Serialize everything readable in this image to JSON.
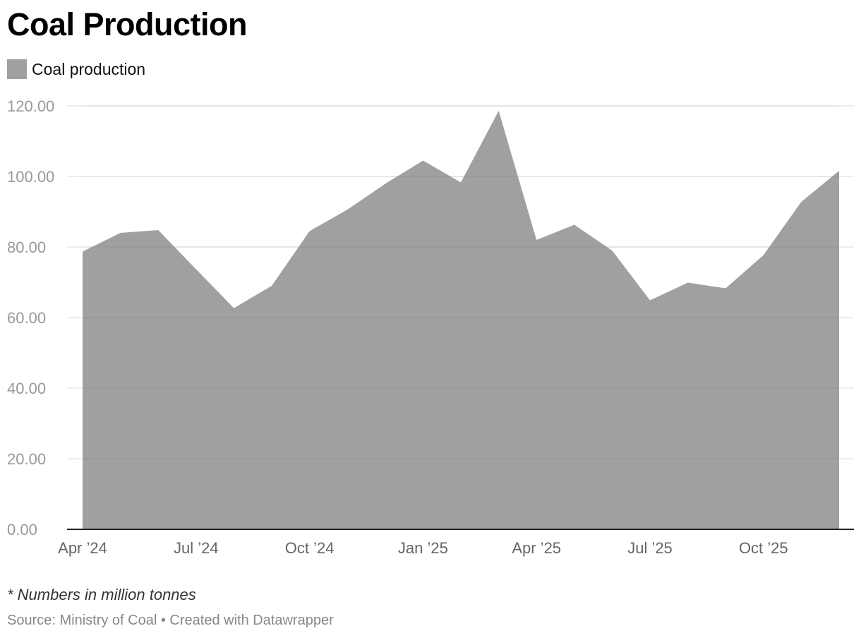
{
  "title": "Coal Production",
  "note": "* Numbers in million tonnes",
  "source": "Source: Ministry of Coal • Created with Datawrapper",
  "colors": {
    "area": "#a0a0a0",
    "grid": "#e2e2e2",
    "baseline": "#222222",
    "tick_y": "#999999",
    "tick_x": "#666666"
  },
  "chart_data": {
    "type": "area",
    "title": "Coal Production",
    "legend": {
      "entries": [
        "Coal production"
      ],
      "placement": "top-left"
    },
    "x": [
      "2024-04",
      "2024-05",
      "2024-06",
      "2024-07",
      "2024-08",
      "2024-09",
      "2024-10",
      "2024-11",
      "2024-12",
      "2025-01",
      "2025-02",
      "2025-03",
      "2025-04",
      "2025-05",
      "2025-06",
      "2025-07",
      "2025-08",
      "2025-09",
      "2025-10",
      "2025-11",
      "2025-12"
    ],
    "series": [
      {
        "name": "Coal production",
        "values": [
          78.7,
          84.0,
          84.8,
          73.7,
          62.7,
          69.0,
          84.5,
          90.6,
          97.9,
          104.5,
          98.3,
          118.6,
          82.0,
          86.3,
          79.0,
          64.9,
          69.9,
          68.3,
          77.7,
          92.8,
          101.6
        ]
      }
    ],
    "ylim": [
      0,
      120
    ],
    "yticks": [
      0,
      20,
      40,
      60,
      80,
      100,
      120
    ],
    "ytick_labels": [
      "0.00",
      "20.00",
      "40.00",
      "60.00",
      "80.00",
      "100.00",
      "120.00"
    ],
    "xticks": [
      "2024-04",
      "2024-07",
      "2024-10",
      "2025-01",
      "2025-04",
      "2025-07",
      "2025-10"
    ],
    "xtick_labels": [
      "Apr ’24",
      "Jul ’24",
      "Oct ’24",
      "Jan ’25",
      "Apr ’25",
      "Jul ’25",
      "Oct ’25"
    ],
    "grid": true
  }
}
